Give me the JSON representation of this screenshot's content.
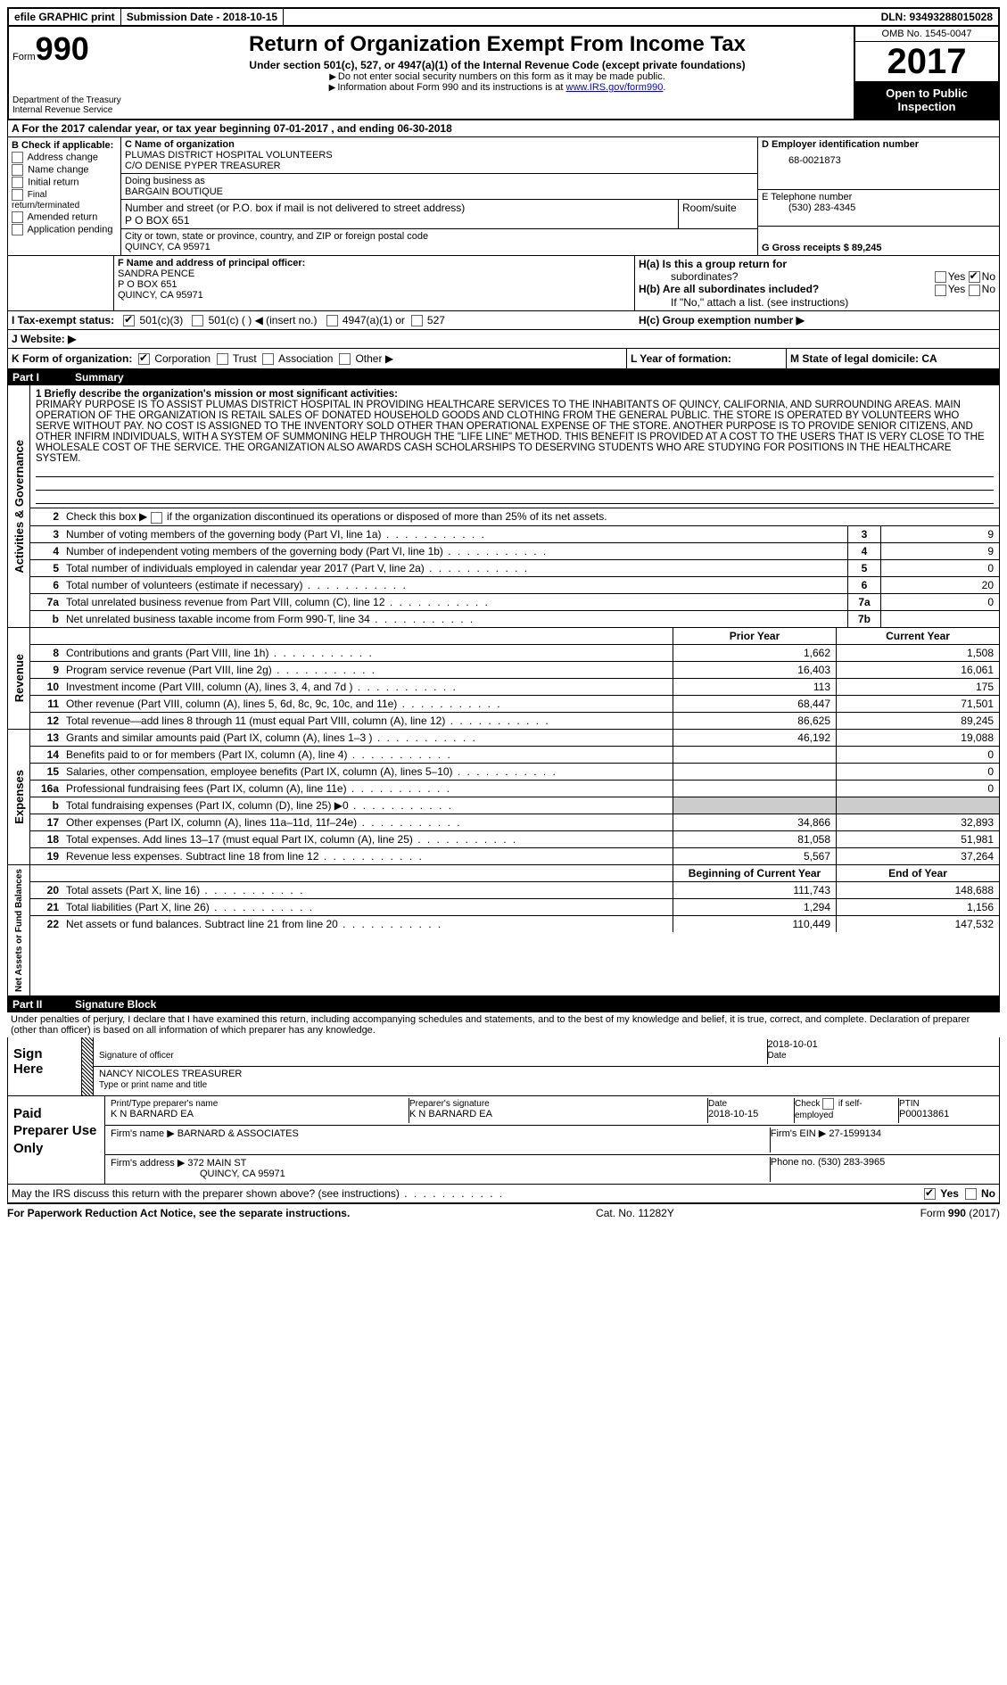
{
  "topbar": {
    "efile": "efile GRAPHIC print",
    "submission": "Submission Date - 2018-10-15",
    "dln": "DLN: 93493288015028"
  },
  "header": {
    "form_prefix": "Form",
    "form_number": "990",
    "dept1": "Department of the Treasury",
    "dept2": "Internal Revenue Service",
    "title": "Return of Organization Exempt From Income Tax",
    "subtitle": "Under section 501(c), 527, or 4947(a)(1) of the Internal Revenue Code (except private foundations)",
    "hint1": "Do not enter social security numbers on this form as it may be made public.",
    "hint2_pre": "Information about Form 990 and its instructions is at ",
    "hint2_link": "www.IRS.gov/form990",
    "omb": "OMB No. 1545-0047",
    "year": "2017",
    "open1": "Open to Public",
    "open2": "Inspection"
  },
  "section_a": "A  For the 2017 calendar year, or tax year beginning 07-01-2017  , and ending 06-30-2018",
  "section_b": {
    "label": "B Check if applicable:",
    "items": [
      "Address change",
      "Name change",
      "Initial return",
      "Final return/terminated",
      "Amended return",
      "Application pending"
    ]
  },
  "section_c": {
    "name_lbl": "C Name of organization",
    "name1": "PLUMAS DISTRICT HOSPITAL VOLUNTEERS",
    "name2": "C/O DENISE PYPER TREASURER",
    "dba_lbl": "Doing business as",
    "dba": "BARGAIN BOUTIQUE",
    "street_lbl": "Number and street (or P.O. box if mail is not delivered to street address)",
    "room_lbl": "Room/suite",
    "street": "P O BOX 651",
    "city_lbl": "City or town, state or province, country, and ZIP or foreign postal code",
    "city": "QUINCY, CA  95971"
  },
  "section_d": {
    "lbl": "D Employer identification number",
    "val": "68-0021873"
  },
  "section_e": {
    "lbl": "E Telephone number",
    "val": "(530) 283-4345"
  },
  "section_g": "G Gross receipts $ 89,245",
  "section_f": {
    "lbl": "F  Name and address of principal officer:",
    "name": "SANDRA PENCE",
    "addr1": "P O BOX 651",
    "addr2": "QUINCY, CA  95971"
  },
  "section_h": {
    "a": "H(a)  Is this a group return for",
    "a2": "subordinates?",
    "b": "H(b)  Are all subordinates included?",
    "battach": "If \"No,\" attach a list. (see instructions)",
    "c": "H(c)  Group exemption number ▶"
  },
  "tax_exempt": {
    "lbl": "I  Tax-exempt status:",
    "o1": "501(c)(3)",
    "o2": "501(c) (  ) ◀ (insert no.)",
    "o3": "4947(a)(1) or",
    "o4": "527"
  },
  "website_lbl": "J  Website: ▶",
  "section_k": {
    "lbl": "K Form of organization:",
    "opts": [
      "Corporation",
      "Trust",
      "Association",
      "Other ▶"
    ]
  },
  "section_l": "L Year of formation:",
  "section_m": "M State of legal domicile: CA",
  "part1": {
    "num": "Part I",
    "title": "Summary"
  },
  "mission_lbl": "1  Briefly describe the organization's mission or most significant activities:",
  "mission": "PRIMARY PURPOSE IS TO ASSIST PLUMAS DISTRICT HOSPITAL IN PROVIDING HEALTHCARE SERVICES TO THE INHABITANTS OF QUINCY, CALIFORNIA, AND SURROUNDING AREAS. MAIN OPERATION OF THE ORGANIZATION IS RETAIL SALES OF DONATED HOUSEHOLD GOODS AND CLOTHING FROM THE GENERAL PUBLIC. THE STORE IS OPERATED BY VOLUNTEERS WHO SERVE WITHOUT PAY. NO COST IS ASSIGNED TO THE INVENTORY SOLD OTHER THAN OPERATIONAL EXPENSE OF THE STORE. ANOTHER PURPOSE IS TO PROVIDE SENIOR CITIZENS, AND OTHER INFIRM INDIVIDUALS, WITH A SYSTEM OF SUMMONING HELP THROUGH THE \"LIFE LINE\" METHOD. THIS BENEFIT IS PROVIDED AT A COST TO THE USERS THAT IS VERY CLOSE TO THE WHOLESALE COST OF THE SERVICE. THE ORGANIZATION ALSO AWARDS CASH SCHOLARSHIPS TO DESERVING STUDENTS WHO ARE STUDYING FOR POSITIONS IN THE HEALTHCARE SYSTEM.",
  "line2": "Check this box ▶     if the organization discontinued its operations or disposed of more than 25% of its net assets.",
  "gov_rows": [
    {
      "n": "3",
      "t": "Number of voting members of the governing body (Part VI, line 1a)",
      "bn": "3",
      "bv": "9"
    },
    {
      "n": "4",
      "t": "Number of independent voting members of the governing body (Part VI, line 1b)",
      "bn": "4",
      "bv": "9"
    },
    {
      "n": "5",
      "t": "Total number of individuals employed in calendar year 2017 (Part V, line 2a)",
      "bn": "5",
      "bv": "0"
    },
    {
      "n": "6",
      "t": "Total number of volunteers (estimate if necessary)",
      "bn": "6",
      "bv": "20"
    },
    {
      "n": "7a",
      "t": "Total unrelated business revenue from Part VIII, column (C), line 12",
      "bn": "7a",
      "bv": "0"
    },
    {
      "n": "b",
      "t": "Net unrelated business taxable income from Form 990-T, line 34",
      "bn": "7b",
      "bv": ""
    }
  ],
  "col_headers": {
    "prior": "Prior Year",
    "current": "Current Year"
  },
  "rev_label": "Revenue",
  "rev_rows": [
    {
      "n": "8",
      "t": "Contributions and grants (Part VIII, line 1h)",
      "p": "1,662",
      "c": "1,508"
    },
    {
      "n": "9",
      "t": "Program service revenue (Part VIII, line 2g)",
      "p": "16,403",
      "c": "16,061"
    },
    {
      "n": "10",
      "t": "Investment income (Part VIII, column (A), lines 3, 4, and 7d )",
      "p": "113",
      "c": "175"
    },
    {
      "n": "11",
      "t": "Other revenue (Part VIII, column (A), lines 5, 6d, 8c, 9c, 10c, and 11e)",
      "p": "68,447",
      "c": "71,501"
    },
    {
      "n": "12",
      "t": "Total revenue—add lines 8 through 11 (must equal Part VIII, column (A), line 12)",
      "p": "86,625",
      "c": "89,245"
    }
  ],
  "exp_label": "Expenses",
  "exp_rows": [
    {
      "n": "13",
      "t": "Grants and similar amounts paid (Part IX, column (A), lines 1–3 )",
      "p": "46,192",
      "c": "19,088"
    },
    {
      "n": "14",
      "t": "Benefits paid to or for members (Part IX, column (A), line 4)",
      "p": "",
      "c": "0"
    },
    {
      "n": "15",
      "t": "Salaries, other compensation, employee benefits (Part IX, column (A), lines 5–10)",
      "p": "",
      "c": "0"
    },
    {
      "n": "16a",
      "t": "Professional fundraising fees (Part IX, column (A), line 11e)",
      "p": "",
      "c": "0"
    },
    {
      "n": "b",
      "t": "Total fundraising expenses (Part IX, column (D), line 25) ▶0",
      "p": "GRAY",
      "c": "GRAY"
    },
    {
      "n": "17",
      "t": "Other expenses (Part IX, column (A), lines 11a–11d, 11f–24e)",
      "p": "34,866",
      "c": "32,893"
    },
    {
      "n": "18",
      "t": "Total expenses. Add lines 13–17 (must equal Part IX, column (A), line 25)",
      "p": "81,058",
      "c": "51,981"
    },
    {
      "n": "19",
      "t": "Revenue less expenses. Subtract line 18 from line 12",
      "p": "5,567",
      "c": "37,264"
    }
  ],
  "net_label": "Net Assets or Fund Balances",
  "net_headers": {
    "b": "Beginning of Current Year",
    "e": "End of Year"
  },
  "net_rows": [
    {
      "n": "20",
      "t": "Total assets (Part X, line 16)",
      "p": "111,743",
      "c": "148,688"
    },
    {
      "n": "21",
      "t": "Total liabilities (Part X, line 26)",
      "p": "1,294",
      "c": "1,156"
    },
    {
      "n": "22",
      "t": "Net assets or fund balances. Subtract line 21 from line 20",
      "p": "110,449",
      "c": "147,532"
    }
  ],
  "gov_label": "Activities & Governance",
  "part2": {
    "num": "Part II",
    "title": "Signature Block"
  },
  "penalty": "Under penalties of perjury, I declare that I have examined this return, including accompanying schedules and statements, and to the best of my knowledge and belief, it is true, correct, and complete. Declaration of preparer (other than officer) is based on all information of which preparer has any knowledge.",
  "sign_here": "Sign Here",
  "sig_officer_lbl": "Signature of officer",
  "sig_date": "2018-10-01",
  "sig_date_lbl": "Date",
  "sig_name": "NANCY NICOLES TREASURER",
  "sig_name_lbl": "Type or print name and title",
  "paid_lbl": "Paid Preparer Use Only",
  "prep": {
    "name_lbl": "Print/Type preparer's name",
    "name": "K N BARNARD EA",
    "sig_lbl": "Preparer's signature",
    "sig": "K N BARNARD EA",
    "date_lbl": "Date",
    "date": "2018-10-15",
    "check_lbl": "Check         if self-employed",
    "ptin_lbl": "PTIN",
    "ptin": "P00013861",
    "firm_lbl": "Firm's name     ▶",
    "firm": "BARNARD & ASSOCIATES",
    "ein_lbl": "Firm's EIN ▶",
    "ein": "27-1599134",
    "addr_lbl": "Firm's address ▶",
    "addr1": "372 MAIN ST",
    "addr2": "QUINCY, CA  95971",
    "phone_lbl": "Phone no.",
    "phone": "(530) 283-3965"
  },
  "discuss": "May the IRS discuss this return with the preparer shown above? (see instructions)",
  "yes": "Yes",
  "no": "No",
  "footer": {
    "left": "For Paperwork Reduction Act Notice, see the separate instructions.",
    "mid": "Cat. No. 11282Y",
    "right": "Form 990 (2017)"
  }
}
